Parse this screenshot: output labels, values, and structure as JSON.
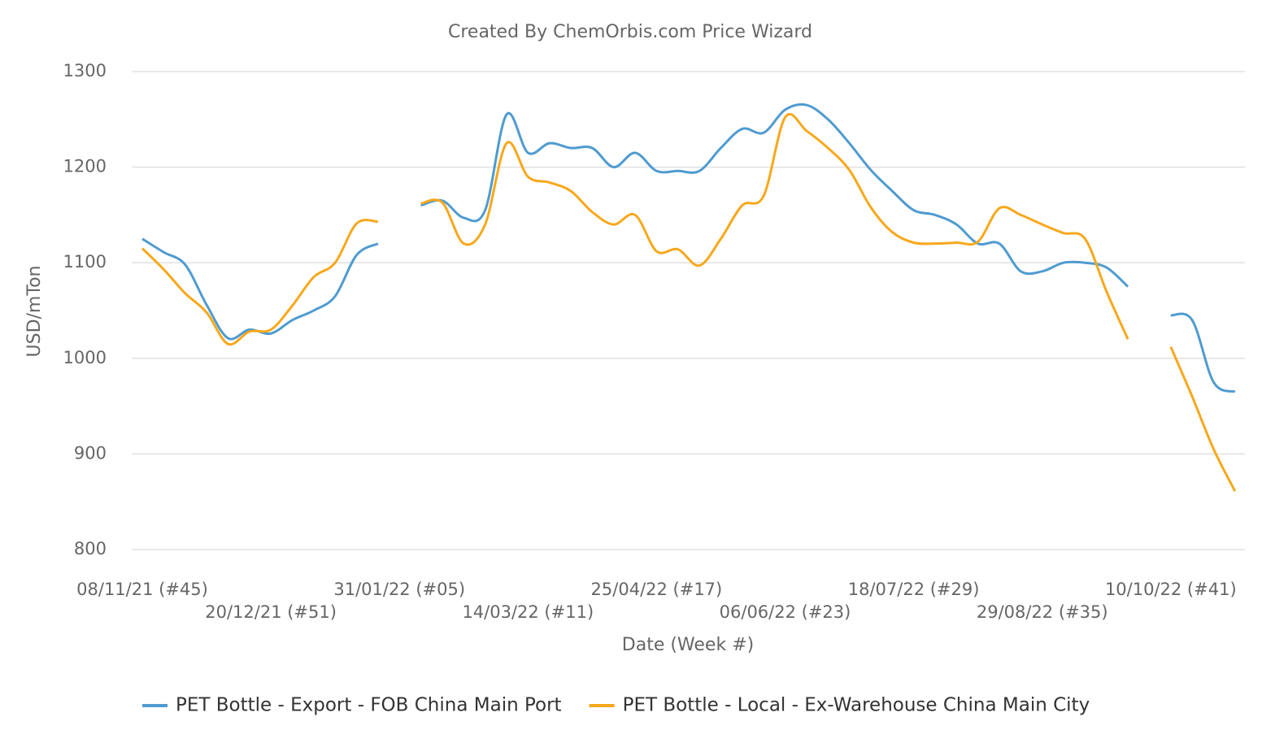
{
  "chart_data": {
    "type": "line",
    "title": "Created By ChemOrbis.com Price Wizard",
    "xlabel": "Date (Week #)",
    "ylabel": "USD/mTon",
    "categories": [
      "08/11/21 (#45)",
      null,
      null,
      null,
      null,
      null,
      "20/12/21 (#51)",
      null,
      null,
      null,
      null,
      null,
      "31/01/22 (#05)",
      null,
      null,
      null,
      null,
      null,
      "14/03/22 (#11)",
      null,
      null,
      null,
      null,
      null,
      "25/04/22 (#17)",
      null,
      null,
      null,
      null,
      null,
      "06/06/22 (#23)",
      null,
      null,
      null,
      null,
      null,
      "18/07/22 (#29)",
      null,
      null,
      null,
      null,
      null,
      "29/08/22 (#35)",
      null,
      null,
      null,
      null,
      null,
      "10/10/22 (#41)",
      null,
      null,
      null
    ],
    "series": [
      {
        "name": "PET Bottle - Export - FOB China Main Port",
        "color": "#4f9bd0",
        "values": [
          1125,
          1111,
          1098,
          1056,
          1021,
          1030,
          1026,
          1040,
          1050,
          1065,
          1108,
          1120,
          null,
          1160,
          1165,
          1147,
          1155,
          1255,
          1215,
          1225,
          1220,
          1220,
          1200,
          1215,
          1196,
          1196,
          1196,
          1220,
          1240,
          1236,
          1260,
          1265,
          1250,
          1225,
          1197,
          1175,
          1155,
          1150,
          1140,
          1120,
          1120,
          1091,
          1091,
          1100,
          1100,
          1095,
          1075,
          null,
          1045,
          1040,
          975,
          965
        ]
      },
      {
        "name": "PET Bottle - Local - Ex-Warehouse China Main City",
        "color": "#f7a81b",
        "values": [
          1115,
          1093,
          1068,
          1048,
          1015,
          1028,
          1030,
          1055,
          1085,
          1100,
          1141,
          1143,
          null,
          1162,
          1163,
          1120,
          1140,
          1225,
          1190,
          1184,
          1175,
          1153,
          1140,
          1150,
          1112,
          1114,
          1097,
          1125,
          1160,
          1170,
          1252,
          1238,
          1220,
          1197,
          1158,
          1132,
          1121,
          1120,
          1121,
          1122,
          1157,
          1150,
          1140,
          1131,
          1125,
          1070,
          1020,
          null,
          1012,
          960,
          905,
          861
        ]
      }
    ],
    "ylim": [
      800,
      1300
    ],
    "yticks": [
      800,
      900,
      1000,
      1100,
      1200,
      1300
    ],
    "grid": true
  }
}
